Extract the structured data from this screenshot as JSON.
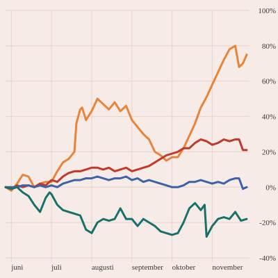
{
  "chart_data": {
    "type": "line",
    "title": "",
    "xlabel": "",
    "ylabel": "",
    "x_range": [
      0,
      126
    ],
    "ylim": [
      -40,
      100
    ],
    "y_ticks": [
      {
        "value": 100,
        "label": "100%"
      },
      {
        "value": 80,
        "label": "80%"
      },
      {
        "value": 60,
        "label": "60%"
      },
      {
        "value": 40,
        "label": "40%"
      },
      {
        "value": 20,
        "label": "20%"
      },
      {
        "value": 0,
        "label": "0%"
      },
      {
        "value": -20,
        "label": "-20%"
      },
      {
        "value": -40,
        "label": "-40%"
      }
    ],
    "x_ticks": [
      {
        "x": 3,
        "label": "juni"
      },
      {
        "x": 24,
        "label": "juli"
      },
      {
        "x": 45,
        "label": "augusti"
      },
      {
        "x": 66,
        "label": "september"
      },
      {
        "x": 87,
        "label": "oktober"
      },
      {
        "x": 108,
        "label": "november"
      }
    ],
    "grid": true,
    "series": [
      {
        "color": "#e8843a",
        "x": [
          0,
          3,
          6,
          9,
          12,
          15,
          18,
          21,
          24,
          27,
          30,
          33,
          36,
          37,
          39,
          40,
          42,
          45,
          48,
          51,
          54,
          57,
          60,
          63,
          66,
          69,
          72,
          75,
          78,
          81,
          84,
          87,
          90,
          93,
          96,
          99,
          102,
          105,
          108,
          111,
          114,
          117,
          120,
          122,
          124,
          126
        ],
        "y": [
          0,
          -2,
          2,
          7,
          6,
          0,
          2,
          3,
          3,
          9,
          14,
          16,
          20,
          36,
          44,
          45,
          38,
          43,
          50,
          47,
          44,
          48,
          43,
          46,
          38,
          34,
          30,
          27,
          20,
          18,
          15,
          17,
          17,
          22,
          29,
          36,
          45,
          51,
          58,
          65,
          72,
          78,
          80,
          68,
          70,
          75
        ]
      },
      {
        "color": "#c0392b",
        "x": [
          0,
          3,
          6,
          9,
          12,
          15,
          18,
          21,
          24,
          27,
          30,
          33,
          36,
          39,
          42,
          45,
          48,
          51,
          54,
          57,
          60,
          63,
          66,
          69,
          72,
          75,
          78,
          81,
          84,
          87,
          90,
          93,
          96,
          99,
          102,
          105,
          108,
          111,
          114,
          117,
          120,
          122,
          124,
          126
        ],
        "y": [
          0,
          -1,
          1,
          0,
          1,
          0,
          2,
          1,
          4,
          3,
          6,
          8,
          9,
          9,
          10,
          11,
          11,
          10,
          11,
          9,
          10,
          11,
          9,
          10,
          11,
          12,
          14,
          16,
          18,
          19,
          20,
          22,
          22,
          25,
          27,
          26,
          24,
          25,
          27,
          26,
          27,
          27,
          21,
          21
        ]
      },
      {
        "color": "#3d62a8",
        "x": [
          0,
          3,
          6,
          9,
          12,
          15,
          18,
          21,
          24,
          27,
          30,
          33,
          36,
          39,
          42,
          45,
          48,
          51,
          54,
          57,
          60,
          63,
          66,
          69,
          72,
          75,
          78,
          81,
          84,
          87,
          90,
          93,
          96,
          99,
          102,
          105,
          108,
          111,
          114,
          117,
          120,
          122,
          124,
          126
        ],
        "y": [
          0,
          0,
          0,
          1,
          1,
          0,
          1,
          0,
          1,
          0,
          2,
          3,
          4,
          4,
          5,
          5,
          6,
          5,
          4,
          5,
          5,
          6,
          4,
          5,
          3,
          4,
          3,
          2,
          1,
          0,
          0,
          1,
          3,
          3,
          4,
          3,
          2,
          3,
          2,
          4,
          5,
          5,
          -1,
          0
        ]
      },
      {
        "color": "#17706a",
        "x": [
          0,
          3,
          6,
          9,
          12,
          15,
          18,
          21,
          23,
          24,
          27,
          30,
          33,
          36,
          39,
          42,
          45,
          48,
          51,
          54,
          57,
          60,
          63,
          66,
          69,
          72,
          75,
          78,
          81,
          84,
          87,
          90,
          93,
          96,
          99,
          102,
          104,
          105,
          108,
          111,
          114,
          117,
          120,
          123,
          126
        ],
        "y": [
          0,
          -1,
          0,
          -3,
          -5,
          -10,
          -14,
          -6,
          -3,
          -4,
          -10,
          -13,
          -14,
          -15,
          -16,
          -24,
          -26,
          -20,
          -18,
          -19,
          -18,
          -12,
          -18,
          -18,
          -22,
          -18,
          -20,
          -22,
          -25,
          -26,
          -27,
          -26,
          -20,
          -12,
          -9,
          -13,
          -10,
          -28,
          -22,
          -18,
          -17,
          -18,
          -14,
          -19,
          -18
        ]
      }
    ]
  }
}
